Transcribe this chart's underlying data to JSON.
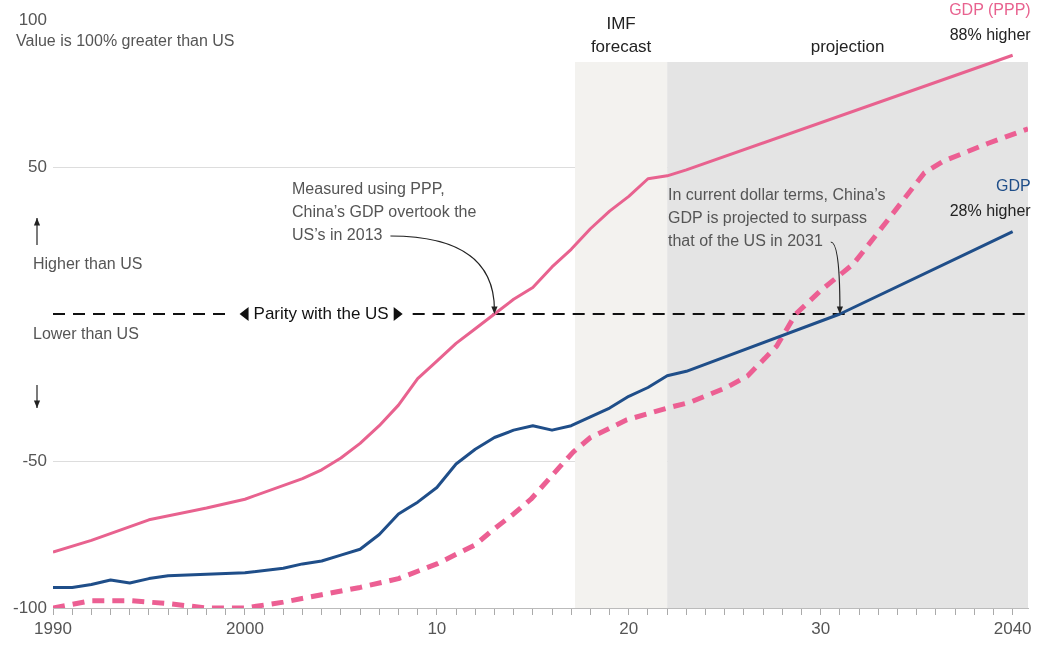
{
  "chart_data": {
    "type": "line",
    "xlim": [
      1990,
      2040.8
    ],
    "ylim": [
      -100,
      100
    ],
    "xticks": [
      {
        "value": 1990,
        "label": "1990"
      },
      {
        "value": 1991,
        "label": null
      },
      {
        "value": 1992,
        "label": null
      },
      {
        "value": 1993,
        "label": null
      },
      {
        "value": 1994,
        "label": null
      },
      {
        "value": 1995,
        "label": null
      },
      {
        "value": 1996,
        "label": null
      },
      {
        "value": 1997,
        "label": null
      },
      {
        "value": 1998,
        "label": null
      },
      {
        "value": 1999,
        "label": null
      },
      {
        "value": 2000,
        "label": "2000"
      },
      {
        "value": 2001,
        "label": null
      },
      {
        "value": 2002,
        "label": null
      },
      {
        "value": 2003,
        "label": null
      },
      {
        "value": 2004,
        "label": null
      },
      {
        "value": 2005,
        "label": null
      },
      {
        "value": 2006,
        "label": null
      },
      {
        "value": 2007,
        "label": null
      },
      {
        "value": 2008,
        "label": null
      },
      {
        "value": 2009,
        "label": null
      },
      {
        "value": 2010,
        "label": "10"
      },
      {
        "value": 2011,
        "label": null
      },
      {
        "value": 2012,
        "label": null
      },
      {
        "value": 2013,
        "label": null
      },
      {
        "value": 2014,
        "label": null
      },
      {
        "value": 2015,
        "label": null
      },
      {
        "value": 2016,
        "label": null
      },
      {
        "value": 2017,
        "label": null
      },
      {
        "value": 2018,
        "label": null
      },
      {
        "value": 2019,
        "label": null
      },
      {
        "value": 2020,
        "label": "20"
      },
      {
        "value": 2021,
        "label": null
      },
      {
        "value": 2022,
        "label": null
      },
      {
        "value": 2023,
        "label": null
      },
      {
        "value": 2024,
        "label": null
      },
      {
        "value": 2025,
        "label": null
      },
      {
        "value": 2026,
        "label": null
      },
      {
        "value": 2027,
        "label": null
      },
      {
        "value": 2028,
        "label": null
      },
      {
        "value": 2029,
        "label": null
      },
      {
        "value": 2030,
        "label": "30"
      },
      {
        "value": 2031,
        "label": null
      },
      {
        "value": 2032,
        "label": null
      },
      {
        "value": 2033,
        "label": null
      },
      {
        "value": 2034,
        "label": null
      },
      {
        "value": 2035,
        "label": null
      },
      {
        "value": 2036,
        "label": null
      },
      {
        "value": 2037,
        "label": null
      },
      {
        "value": 2038,
        "label": null
      },
      {
        "value": 2039,
        "label": null
      },
      {
        "value": 2040,
        "label": "2040"
      }
    ],
    "yticks": [
      -100,
      -50,
      50,
      100
    ],
    "grid": "y",
    "legend": false,
    "marker": "none",
    "series": [
      {
        "name": "GDP (PPP)",
        "color": "#e8628f",
        "x": [
          1990,
          1992,
          1995,
          1998,
          2000,
          2003,
          2004,
          2005,
          2006,
          2007,
          2008,
          2009,
          2010,
          2011,
          2012,
          2013,
          2014,
          2015,
          2016,
          2017,
          2018,
          2019,
          2020,
          2021,
          2022,
          2023,
          2040
        ],
        "values": [
          -81,
          -77,
          -70,
          -66,
          -63,
          -56,
          -53,
          -49,
          -44,
          -38,
          -31,
          -22,
          -16,
          -10,
          -5,
          0,
          5,
          9,
          16,
          22,
          29,
          35,
          40,
          46,
          47,
          49,
          88
        ]
      },
      {
        "name": "GDP",
        "color": "#1f4e89",
        "x": [
          1990,
          1991,
          1992,
          1993,
          1994,
          1995,
          1996,
          1998,
          2000,
          2002,
          2003,
          2004,
          2005,
          2006,
          2007,
          2008,
          2009,
          2010,
          2011,
          2012,
          2013,
          2014,
          2015,
          2016,
          2017,
          2018,
          2019,
          2020,
          2021,
          2022,
          2023,
          2031,
          2040
        ],
        "values": [
          -93,
          -93,
          -92,
          -90.5,
          -91.5,
          -90,
          -89,
          -88.5,
          -88,
          -86.5,
          -85,
          -84,
          -82,
          -80,
          -75,
          -68,
          -64,
          -59,
          -51,
          -46,
          -42,
          -39.5,
          -38,
          -39.5,
          -38,
          -35,
          -32,
          -28,
          -25,
          -21,
          -19.5,
          0,
          28
        ]
      },
      {
        "color": "#ec5f93",
        "line_style": "dashed",
        "x": [
          1990,
          1992,
          1994,
          1996,
          1998,
          2000,
          2002,
          2004,
          2006,
          2008,
          2010,
          2012,
          2013,
          2014,
          2014.9,
          2016.4,
          2017.1,
          2018,
          2019.9,
          2022,
          2023.2,
          2025.1,
          2026.2,
          2027.7,
          2028.7,
          2030,
          2031.7,
          2033.5,
          2035.4,
          2036.4,
          2038.7,
          2040.8
        ],
        "values": [
          -100,
          -97.5,
          -97.5,
          -98.5,
          -100,
          -100,
          -98,
          -95.5,
          -93,
          -90,
          -85,
          -78.5,
          -73,
          -68,
          -63,
          -52,
          -47,
          -42,
          -36,
          -32,
          -30,
          -25,
          -21,
          -11,
          0,
          8,
          17,
          32,
          48,
          52,
          58,
          63
        ]
      }
    ],
    "ref_lines": [
      {
        "axis": "y",
        "value": 0,
        "label": "Parity with the US",
        "color": "#111111",
        "line_style": "dashed"
      }
    ],
    "bands": [
      {
        "axis": "x",
        "from": 2017.2,
        "to": 2022,
        "label": "IMF forecast",
        "color": "#f3f2ef"
      },
      {
        "axis": "x",
        "from": 2022,
        "to": 2040.8,
        "label": "projection",
        "color": "#e4e4e4"
      }
    ],
    "annotations": [
      "Value is 100% greater than US",
      "Higher than US",
      "Lower than US",
      {
        "text": "Measured using PPP, China’s GDP overtook the US’s in 2013",
        "x": 2013,
        "y": 0
      },
      {
        "text": "In current dollar terms, China’s GDP is projected to surpass that of the US in 2031",
        "x": 2031,
        "y": 0
      },
      {
        "text": "88% higher",
        "x": 2040,
        "y": 88
      },
      {
        "text": "28% higher",
        "x": 2040,
        "y": 28
      }
    ]
  }
}
